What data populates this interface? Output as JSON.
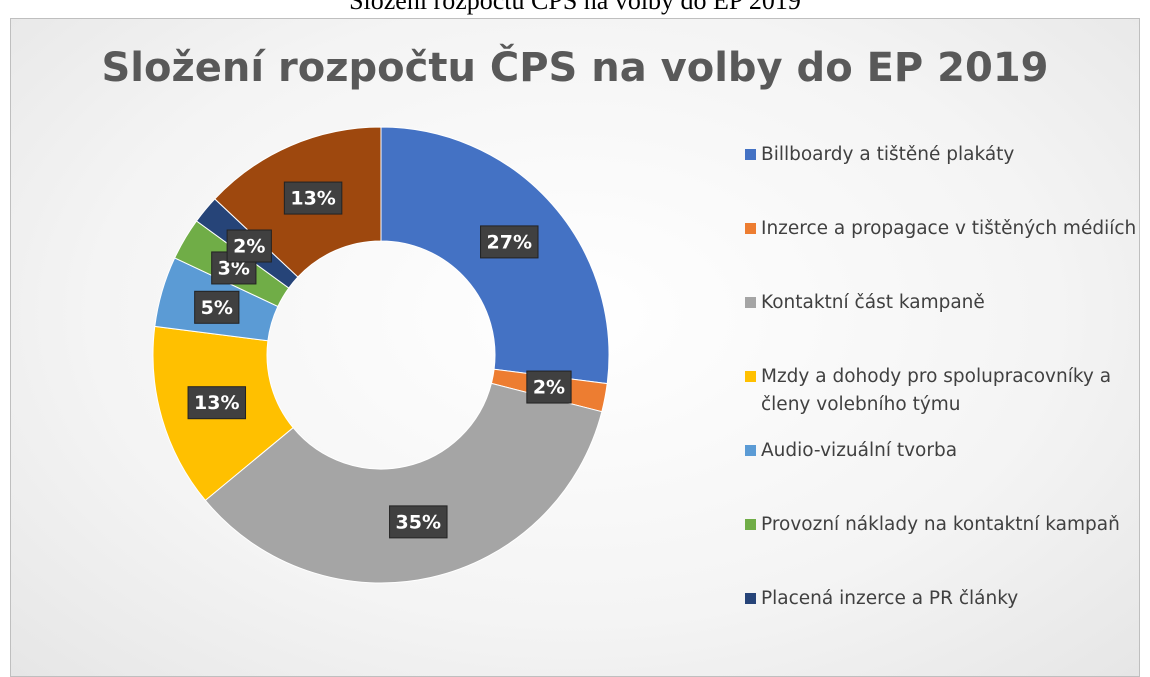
{
  "caption": "Složení rozpočtu ČPS na volby do EP 2019",
  "chart_data": {
    "type": "donut",
    "title": "Složení rozpočtu ČPS na volby do EP 2019",
    "categories": [
      "Billboardy a tištěné plakáty",
      "Inzerce a propagace v tištěných médiích",
      "Kontaktní část kampaně",
      "Mzdy a dohody pro spolupracovníky a členy volebního týmu",
      "Audio-vizuální tvorba",
      "Provozní náklady na kontaktní kampaň",
      "Placená inzerce a PR články",
      null
    ],
    "values": [
      27,
      2,
      35,
      13,
      5,
      3,
      2,
      13
    ],
    "value_labels": [
      "27%",
      "2%",
      "35%",
      "13%",
      "5%",
      "3%",
      "2%",
      "13%"
    ],
    "colors": [
      "#4472c4",
      "#ed7d31",
      "#a5a5a5",
      "#ffc000",
      "#5b9bd5",
      "#70ad47",
      "#264478",
      "#9e480e"
    ],
    "legend": "right"
  }
}
